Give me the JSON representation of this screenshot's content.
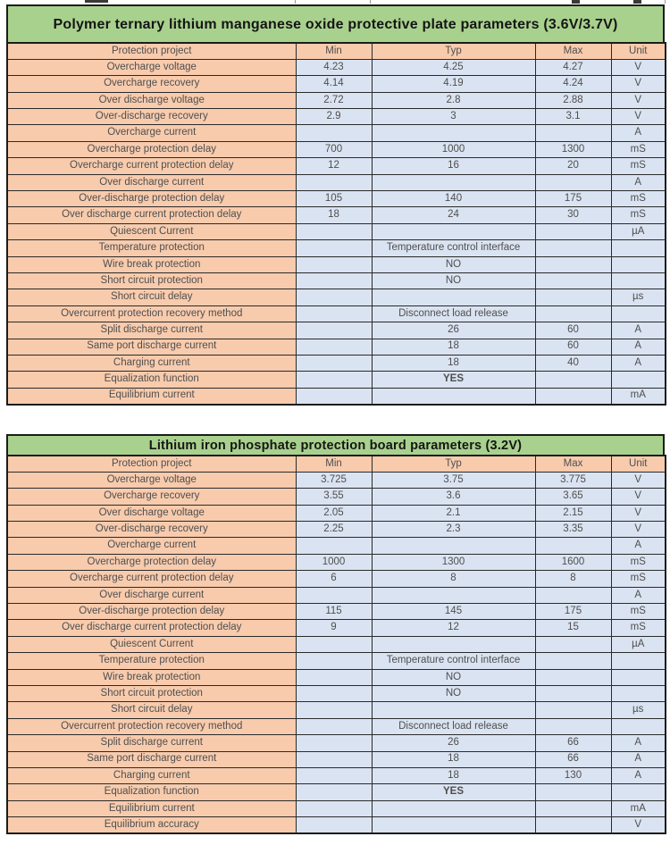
{
  "colors": {
    "title_green": "#a9d18e",
    "label_peach": "#f8cbad",
    "data_blue": "#dae3f1",
    "border": "#1c1c1c",
    "text": "#4f4f4f",
    "yes_red": "#e30613"
  },
  "columns": [
    "Protection project",
    "Min",
    "Typ",
    "Max",
    "Unit"
  ],
  "tables": [
    {
      "title": "Polymer ternary lithium manganese oxide protective plate parameters (3.6V/3.7V)",
      "rows": [
        {
          "label": "Overcharge voltage",
          "min": "4.23",
          "typ": "4.25",
          "max": "4.27",
          "unit": "V"
        },
        {
          "label": "Overcharge recovery",
          "min": "4.14",
          "typ": "4.19",
          "max": "4.24",
          "unit": "V"
        },
        {
          "label": "Over discharge voltage",
          "min": "2.72",
          "typ": "2.8",
          "max": "2.88",
          "unit": "V"
        },
        {
          "label": "Over-discharge recovery",
          "min": "2.9",
          "typ": "3",
          "max": "3.1",
          "unit": "V"
        },
        {
          "label": "Overcharge current",
          "min": "",
          "typ": "",
          "max": "",
          "unit": "A"
        },
        {
          "label": "Overcharge protection delay",
          "min": "700",
          "typ": "1000",
          "max": "1300",
          "unit": "mS"
        },
        {
          "label": "Overcharge current protection delay",
          "min": "12",
          "typ": "16",
          "max": "20",
          "unit": "mS"
        },
        {
          "label": "Over discharge current",
          "min": "",
          "typ": "",
          "max": "",
          "unit": "A"
        },
        {
          "label": "Over-discharge protection delay",
          "min": "105",
          "typ": "140",
          "max": "175",
          "unit": "mS"
        },
        {
          "label": "Over discharge current protection delay",
          "min": "18",
          "typ": "24",
          "max": "30",
          "unit": "mS"
        },
        {
          "label": "Quiescent Current",
          "min": "",
          "typ": "",
          "max": "",
          "unit": "µA"
        },
        {
          "label": "Temperature protection",
          "min": "",
          "typ": "Temperature control interface",
          "max": "",
          "unit": ""
        },
        {
          "label": "Wire break protection",
          "min": "",
          "typ": "NO",
          "max": "",
          "unit": ""
        },
        {
          "label": "Short circuit protection",
          "min": "",
          "typ": "NO",
          "max": "",
          "unit": ""
        },
        {
          "label": "Short circuit delay",
          "min": "",
          "typ": "",
          "max": "",
          "unit": "µs"
        },
        {
          "label": "Overcurrent protection recovery method",
          "min": "",
          "typ": "Disconnect load release",
          "max": "",
          "unit": ""
        },
        {
          "label": "Split discharge current",
          "min": "",
          "typ": "26",
          "max": "60",
          "unit": "A"
        },
        {
          "label": "Same port discharge current",
          "min": "",
          "typ": "18",
          "max": "60",
          "unit": "A"
        },
        {
          "label": "Charging current",
          "min": "",
          "typ": "18",
          "max": "40",
          "unit": "A"
        },
        {
          "label": "Equalization function",
          "min": "",
          "typ": "YES",
          "max": "",
          "unit": "",
          "emphasis": true
        },
        {
          "label": "Equilibrium current",
          "min": "",
          "typ": "",
          "max": "",
          "unit": "mA"
        }
      ]
    },
    {
      "title": "Lithium iron phosphate protection board parameters (3.2V)",
      "rows": [
        {
          "label": "Overcharge voltage",
          "min": "3.725",
          "typ": "3.75",
          "max": "3.775",
          "unit": "V"
        },
        {
          "label": "Overcharge recovery",
          "min": "3.55",
          "typ": "3.6",
          "max": "3.65",
          "unit": "V"
        },
        {
          "label": "Over discharge voltage",
          "min": "2.05",
          "typ": "2.1",
          "max": "2.15",
          "unit": "V"
        },
        {
          "label": "Over-discharge recovery",
          "min": "2.25",
          "typ": "2.3",
          "max": "3.35",
          "unit": "V"
        },
        {
          "label": "Overcharge current",
          "min": "",
          "typ": "",
          "max": "",
          "unit": "A"
        },
        {
          "label": "Overcharge protection delay",
          "min": "1000",
          "typ": "1300",
          "max": "1600",
          "unit": "mS"
        },
        {
          "label": "Overcharge current protection delay",
          "min": "6",
          "typ": "8",
          "max": "8",
          "unit": "mS"
        },
        {
          "label": "Over discharge current",
          "min": "",
          "typ": "",
          "max": "",
          "unit": "A"
        },
        {
          "label": "Over-discharge protection delay",
          "min": "115",
          "typ": "145",
          "max": "175",
          "unit": "mS"
        },
        {
          "label": "Over discharge current protection delay",
          "min": "9",
          "typ": "12",
          "max": "15",
          "unit": "mS"
        },
        {
          "label": "Quiescent Current",
          "min": "",
          "typ": "",
          "max": "",
          "unit": "µA"
        },
        {
          "label": "Temperature protection",
          "min": "",
          "typ": "Temperature control interface",
          "max": "",
          "unit": ""
        },
        {
          "label": "Wire break protection",
          "min": "",
          "typ": "NO",
          "max": "",
          "unit": ""
        },
        {
          "label": "Short circuit protection",
          "min": "",
          "typ": "NO",
          "max": "",
          "unit": ""
        },
        {
          "label": "Short circuit delay",
          "min": "",
          "typ": "",
          "max": "",
          "unit": "µs"
        },
        {
          "label": "Overcurrent protection recovery method",
          "min": "",
          "typ": "Disconnect load release",
          "max": "",
          "unit": ""
        },
        {
          "label": "Split discharge current",
          "min": "",
          "typ": "26",
          "max": "66",
          "unit": "A"
        },
        {
          "label": "Same port discharge current",
          "min": "",
          "typ": "18",
          "max": "66",
          "unit": "A"
        },
        {
          "label": "Charging current",
          "min": "",
          "typ": "18",
          "max": "130",
          "unit": "A"
        },
        {
          "label": "Equalization function",
          "min": "",
          "typ": "YES",
          "max": "",
          "unit": "",
          "emphasis": true
        },
        {
          "label": "Equilibrium current",
          "min": "",
          "typ": "",
          "max": "",
          "unit": "mA"
        },
        {
          "label": "Equilibrium accuracy",
          "min": "",
          "typ": "",
          "max": "",
          "unit": "V"
        }
      ]
    }
  ]
}
